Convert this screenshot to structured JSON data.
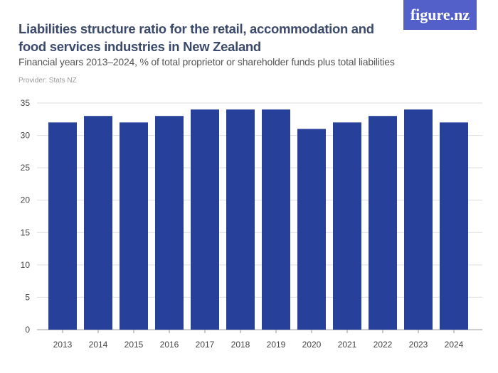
{
  "logo": "figure.nz",
  "chart_data": {
    "type": "bar",
    "title": "Liabilities structure ratio for the retail, accommodation and food services industries in New Zealand",
    "subtitle": "Financial years 2013–2024, % of total proprietor or shareholder funds plus total liabilities",
    "provider": "Provider: Stats NZ",
    "categories": [
      "2013",
      "2014",
      "2015",
      "2016",
      "2017",
      "2018",
      "2019",
      "2020",
      "2021",
      "2022",
      "2023",
      "2024"
    ],
    "values": [
      32,
      33,
      32,
      33,
      34,
      34,
      34,
      31,
      32,
      33,
      34,
      32
    ],
    "ylim": [
      0,
      35
    ],
    "yticks": [
      0,
      5,
      10,
      15,
      20,
      25,
      30,
      35
    ],
    "grid": true,
    "bar_color": "#27409a"
  }
}
